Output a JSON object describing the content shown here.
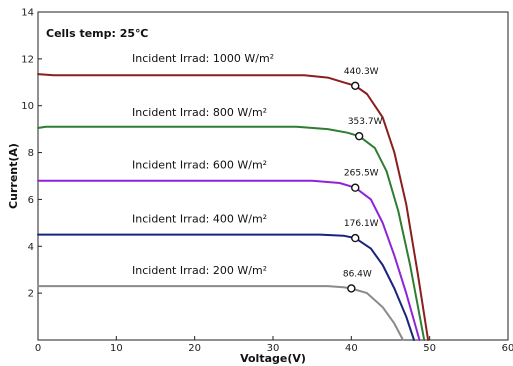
{
  "chart_data": {
    "type": "line",
    "xlabel": "Voltage(V)",
    "ylabel": "Current(A)",
    "xlim": [
      0,
      60
    ],
    "ylim": [
      0,
      14
    ],
    "xticks": [
      0,
      10,
      20,
      30,
      40,
      50,
      60
    ],
    "yticks": [
      2,
      4,
      6,
      8,
      10,
      12,
      14
    ],
    "grid": false,
    "annotation": "Cells temp:  25℃",
    "series": [
      {
        "name": "Incident Irrad:  1000 W/m²",
        "color": "#8b1e1e",
        "x": [
          0,
          2,
          34,
          37,
          39,
          40.5,
          42,
          44,
          45.5,
          47,
          48.5,
          49.8
        ],
        "y": [
          11.35,
          11.3,
          11.3,
          11.2,
          11.0,
          10.85,
          10.5,
          9.5,
          8.0,
          5.8,
          2.8,
          0
        ],
        "mpp": {
          "x": 40.5,
          "y": 10.85,
          "label": "440.3W"
        }
      },
      {
        "name": "Incident Irrad:  800 W/m²",
        "color": "#2e7d32",
        "x": [
          0,
          1,
          33,
          37,
          39.5,
          41,
          43,
          44.5,
          46,
          47.5,
          49.3
        ],
        "y": [
          9.05,
          9.1,
          9.1,
          9.0,
          8.85,
          8.7,
          8.2,
          7.2,
          5.5,
          3.2,
          0
        ],
        "mpp": {
          "x": 41,
          "y": 8.7,
          "label": "353.7W"
        }
      },
      {
        "name": "Incident Irrad:  600 W/m²",
        "color": "#8e24d8",
        "x": [
          0,
          1,
          35,
          38.5,
          40.5,
          42.5,
          44,
          45.5,
          47,
          48.7
        ],
        "y": [
          6.8,
          6.8,
          6.8,
          6.7,
          6.5,
          6.0,
          5.0,
          3.6,
          2.0,
          0
        ],
        "mpp": {
          "x": 40.5,
          "y": 6.5,
          "label": "265.5W"
        }
      },
      {
        "name": "Incident Irrad:  400 W/m²",
        "color": "#1a237e",
        "x": [
          0,
          1,
          36,
          39,
          40.5,
          42.5,
          44,
          45.5,
          47,
          48
        ],
        "y": [
          4.5,
          4.5,
          4.5,
          4.45,
          4.35,
          3.9,
          3.2,
          2.2,
          1.0,
          0
        ],
        "mpp": {
          "x": 40.5,
          "y": 4.35,
          "label": "176.1W"
        }
      },
      {
        "name": "Incident Irrad:  200 W/m²",
        "color": "#8a8a8a",
        "x": [
          0,
          1,
          37,
          39,
          40,
          42,
          44,
          45.5,
          46.6
        ],
        "y": [
          2.3,
          2.3,
          2.3,
          2.25,
          2.2,
          2.0,
          1.4,
          0.7,
          0
        ],
        "mpp": {
          "x": 40,
          "y": 2.2,
          "label": "86.4W"
        }
      }
    ]
  }
}
